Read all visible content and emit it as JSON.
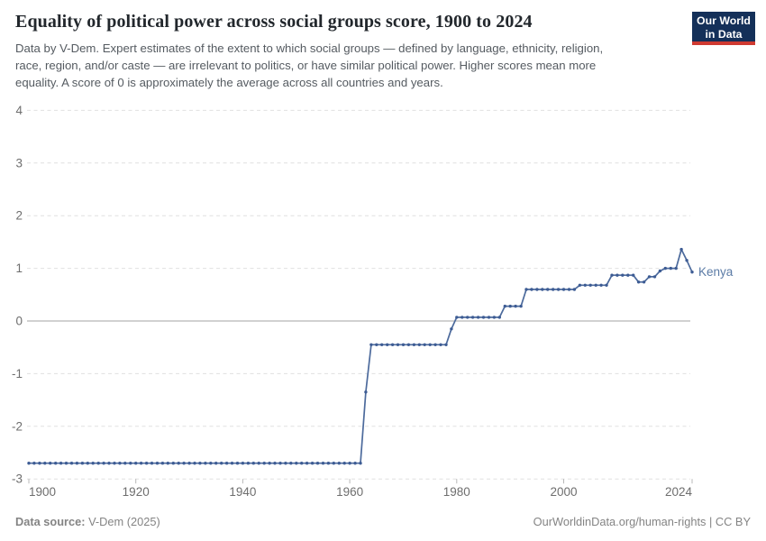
{
  "header": {
    "title": "Equality of political power across social groups score, 1900 to 2024",
    "subtitle": "Data by V-Dem. Expert estimates of the extent to which social groups — defined by language, ethnicity, religion,\nrace, region, and/or caste — are irrelevant to politics, or have similar political power. Higher scores mean more\nequality. A score of 0 is approximately the average across all countries and years."
  },
  "logo": {
    "line1": "Our World",
    "line2": "in Data",
    "bg_color": "#143059",
    "bar_color": "#cf3a31"
  },
  "chart_data": {
    "type": "line",
    "title": "Equality of political power across social groups score, 1900 to 2024",
    "xlabel": "",
    "ylabel": "",
    "xlim": [
      1900,
      2024
    ],
    "ylim": [
      -3,
      4
    ],
    "xticks": [
      1900,
      1920,
      1940,
      1960,
      1980,
      2000,
      2024
    ],
    "yticks": [
      -3,
      -2,
      -1,
      0,
      1,
      2,
      3,
      4
    ],
    "grid": true,
    "legend_position": "line-end-label",
    "colors": {
      "gridline": "#e0e0e0",
      "zero_line": "#a3a3a3",
      "tick_label": "#6e6e6e"
    },
    "series": [
      {
        "name": "Kenya",
        "color": "#4c6a9c",
        "dot_color": "#3d5c94",
        "label_color": "#5b7ba6",
        "segments": [
          {
            "from": 1900,
            "to": 1962,
            "value": -2.7
          },
          {
            "from": 1963,
            "to": 1963,
            "value": -1.35
          },
          {
            "from": 1964,
            "to": 1978,
            "value": -0.45
          },
          {
            "from": 1979,
            "to": 1979,
            "value": -0.15
          },
          {
            "from": 1980,
            "to": 1988,
            "value": 0.07
          },
          {
            "from": 1989,
            "to": 1992,
            "value": 0.28
          },
          {
            "from": 1993,
            "to": 2002,
            "value": 0.6
          },
          {
            "from": 2003,
            "to": 2008,
            "value": 0.68
          },
          {
            "from": 2009,
            "to": 2013,
            "value": 0.87
          },
          {
            "from": 2014,
            "to": 2015,
            "value": 0.74
          },
          {
            "from": 2016,
            "to": 2017,
            "value": 0.84
          },
          {
            "from": 2018,
            "to": 2018,
            "value": 0.95
          },
          {
            "from": 2019,
            "to": 2021,
            "value": 1.0
          },
          {
            "from": 2022,
            "to": 2022,
            "value": 1.36
          },
          {
            "from": 2023,
            "to": 2023,
            "value": 1.15
          },
          {
            "from": 2024,
            "to": 2024,
            "value": 0.93
          }
        ]
      }
    ]
  },
  "footer": {
    "source_label": "Data source:",
    "source_value": " V-Dem (2025)",
    "credit": "OurWorldinData.org/human-rights | CC BY"
  }
}
